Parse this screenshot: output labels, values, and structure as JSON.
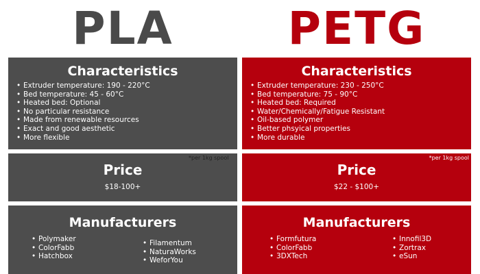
{
  "pla": {
    "title": "PLA",
    "characteristics_heading": "Characteristics",
    "characteristics": [
      "Extruder temperature: 190 - 220°C",
      "Bed temperature: 45 - 60°C",
      "Heated bed: Optional",
      "No particular resistance",
      "Made from renewable resources",
      "Exact and good aesthetic",
      "More flexible"
    ],
    "price_heading": "Price",
    "price_value": "$18-100+",
    "price_note": "*per 1kg spool",
    "manufacturers_heading": "Manufacturers",
    "manufacturers_col1": [
      "Polymaker",
      "ColorFabb",
      "Hatchbox"
    ],
    "manufacturers_col2": [
      "Filamentum",
      "NaturaWorks",
      "WeforYou"
    ]
  },
  "petg": {
    "title": "PETG",
    "characteristics_heading": "Characteristics",
    "characteristics": [
      "Extruder temperature: 230 - 250°C",
      "Bed temperature: 75 - 90°C",
      "Heated bed: Required",
      "Water/Chemically/Fatigue Resistant",
      "Oil-based polymer",
      "Better phsyical properties",
      "More durable"
    ],
    "price_heading": "Price",
    "price_value": "$22 - $100+",
    "price_note": "*per 1kg spool",
    "manufacturers_heading": "Manufacturers",
    "manufacturers_col1": [
      "Formfutura",
      "ColorFabb",
      "3DXTech"
    ],
    "manufacturers_col2": [
      "Innofil3D",
      "Zortrax",
      "eSun"
    ]
  },
  "colors": {
    "pla_gray": "#4d4d4d",
    "petg_red": "#b5000d"
  }
}
